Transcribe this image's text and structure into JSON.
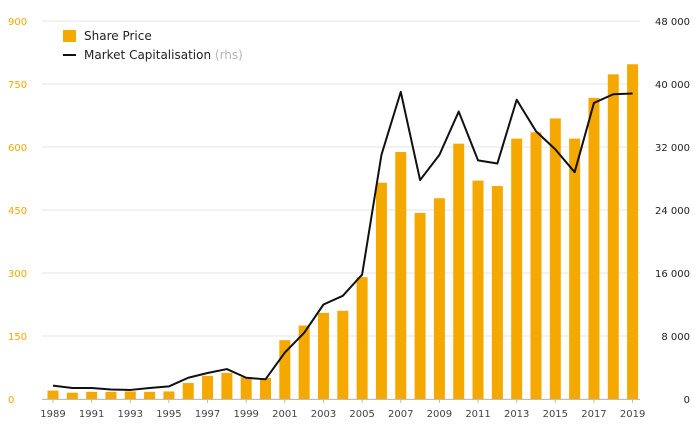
{
  "chart_data": {
    "type": "bar",
    "x": [
      1989,
      1990,
      1991,
      1992,
      1993,
      1994,
      1995,
      1996,
      1997,
      1998,
      1999,
      2000,
      2001,
      2002,
      2003,
      2004,
      2005,
      2006,
      2007,
      2008,
      2009,
      2010,
      2011,
      2012,
      2013,
      2014,
      2015,
      2016,
      2017,
      2018,
      2019
    ],
    "series": [
      {
        "name": "Share Price",
        "type": "bar",
        "axis": "left",
        "color": "#f5a800",
        "values": [
          20,
          15,
          17,
          17,
          18,
          17,
          18,
          38,
          55,
          62,
          52,
          50,
          140,
          175,
          205,
          210,
          290,
          515,
          588,
          443,
          478,
          608,
          520,
          507,
          620,
          635,
          668,
          620,
          717,
          773,
          797
        ]
      },
      {
        "name": "Market Capitalisation",
        "type": "line",
        "axis": "right",
        "color": "#111111",
        "values": [
          1700,
          1400,
          1400,
          1200,
          1150,
          1400,
          1600,
          2700,
          3300,
          3800,
          2700,
          2500,
          5900,
          8400,
          12000,
          13100,
          15800,
          31000,
          39000,
          27800,
          31000,
          36500,
          30300,
          29900,
          38000,
          34000,
          31700,
          28800,
          37600,
          38700,
          38800
        ]
      }
    ],
    "legend": [
      {
        "label": "Share Price",
        "note": ""
      },
      {
        "label": "Market Capitalisation",
        "note": "(rhs)"
      }
    ],
    "legend_position": "top-left",
    "y_left": {
      "ticks": [
        "0",
        "150",
        "300",
        "450",
        "600",
        "750",
        "900"
      ],
      "range": [
        0,
        900
      ]
    },
    "y_right": {
      "ticks": [
        "0",
        "8 000",
        "16 000",
        "24 000",
        "32 000",
        "40 000",
        "48 000"
      ],
      "range": [
        0,
        48000
      ]
    },
    "x_ticks": [
      "1989",
      "1991",
      "1993",
      "1995",
      "1997",
      "1999",
      "2001",
      "2003",
      "2005",
      "2007",
      "2009",
      "2011",
      "2013",
      "2015",
      "2017",
      "2019"
    ],
    "grid": true
  }
}
